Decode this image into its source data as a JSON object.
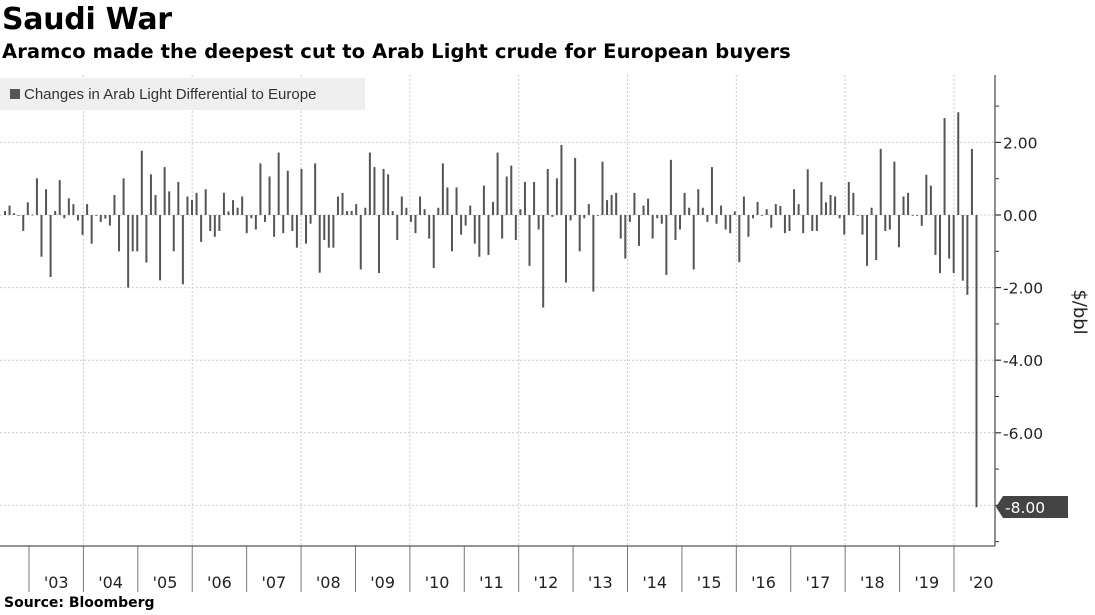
{
  "header": {
    "title": "Saudi War",
    "subtitle": "Aramco made the deepest cut to Arab Light crude for European buyers"
  },
  "footer": {
    "source": "Source: Bloomberg"
  },
  "colors": {
    "bar": "#555555",
    "grid": "#cccccc",
    "callout": "#444444"
  },
  "chart_data": {
    "type": "bar",
    "title": "Saudi War",
    "subtitle": "Aramco made the deepest cut to Arab Light crude for European buyers",
    "legend": {
      "entries": [
        "Changes in Arab Light Differential to Europe"
      ],
      "placement": "top-left"
    },
    "x_start": "2002-08",
    "frequency": "monthly",
    "x_tick_labels": [
      "'03",
      "'04",
      "'05",
      "'06",
      "'07",
      "'08",
      "'09",
      "'10",
      "'11",
      "'12",
      "'13",
      "'14",
      "'15",
      "'16",
      "'17",
      "'18",
      "'19",
      "'20"
    ],
    "x_tick_years": [
      2003,
      2004,
      2005,
      2006,
      2007,
      2008,
      2009,
      2010,
      2011,
      2012,
      2013,
      2014,
      2015,
      2016,
      2017,
      2018,
      2019,
      2020
    ],
    "y_ticks": [
      2,
      0,
      -2,
      -4,
      -6,
      -8
    ],
    "y_tick_labels": [
      "2.00",
      "0.00",
      "-2.00",
      "-4.00",
      "-6.00",
      "-8.00"
    ],
    "ylabel": "$/bbl",
    "xlabel": "",
    "ylim": [
      -9.1,
      3.85
    ],
    "grid": true,
    "axis_side": "right",
    "last_value_label": "-8.00",
    "values": [
      0.11,
      0.26,
      0.05,
      0.0,
      -0.44,
      0.35,
      0.01,
      1.01,
      -1.15,
      0.71,
      -1.71,
      0.11,
      0.96,
      -0.09,
      0.46,
      0.3,
      -0.15,
      -0.55,
      0.3,
      -0.79,
      -0.02,
      -0.19,
      -0.1,
      -0.29,
      0.55,
      -1.0,
      1.01,
      -2.0,
      -1.0,
      -1.0,
      1.77,
      -1.31,
      1.12,
      0.55,
      -1.8,
      1.32,
      0.65,
      -1.0,
      0.91,
      -1.91,
      0.51,
      0.41,
      0.61,
      -0.74,
      0.71,
      -0.44,
      -0.6,
      -0.44,
      0.61,
      0.1,
      0.41,
      0.2,
      0.51,
      -0.5,
      -0.09,
      -0.4,
      1.42,
      -0.19,
      1.06,
      -0.6,
      1.72,
      -0.5,
      1.22,
      -0.44,
      -0.9,
      1.27,
      -0.79,
      -0.24,
      1.42,
      -1.59,
      -0.69,
      -0.9,
      -0.9,
      0.51,
      0.61,
      0.11,
      0.11,
      0.3,
      -1.5,
      0.2,
      1.72,
      1.32,
      -1.6,
      1.27,
      1.12,
      0.11,
      -0.69,
      0.51,
      0.2,
      -0.19,
      -0.5,
      0.51,
      0.16,
      -0.65,
      -1.46,
      0.2,
      1.42,
      0.76,
      -1.0,
      0.76,
      -0.54,
      -0.29,
      0.26,
      -0.79,
      -1.15,
      0.81,
      -1.1,
      0.36,
      1.72,
      -0.65,
      1.06,
      1.36,
      -0.69,
      0.16,
      0.91,
      -1.4,
      0.91,
      -0.4,
      -2.55,
      1.27,
      -0.05,
      1.01,
      1.93,
      -1.86,
      -0.15,
      1.57,
      -1.0,
      -0.09,
      0.3,
      -2.11,
      -0.01,
      1.47,
      0.41,
      0.55,
      0.61,
      -0.65,
      -1.2,
      -0.19,
      0.61,
      -0.85,
      0.26,
      0.45,
      -0.65,
      -0.09,
      -0.24,
      -1.65,
      1.52,
      -0.69,
      -0.4,
      0.61,
      0.2,
      -1.5,
      0.71,
      0.2,
      -0.19,
      1.32,
      -0.24,
      0.26,
      -0.4,
      -0.5,
      0.1,
      -1.3,
      0.51,
      -0.6,
      -0.09,
      0.36,
      -0.01,
      0.16,
      -0.35,
      0.3,
      0.25,
      -0.5,
      -0.44,
      0.71,
      0.3,
      -0.5,
      1.26,
      -0.44,
      -0.44,
      0.91,
      0.35,
      0.55,
      0.51,
      -0.09,
      -0.54,
      0.91,
      0.61,
      -0.01,
      -0.54,
      -1.4,
      0.2,
      -1.24,
      1.82,
      -0.44,
      -0.4,
      1.47,
      -0.89,
      0.51,
      0.61,
      0.0,
      -0.01,
      -0.3,
      1.11,
      0.81,
      -1.1,
      -1.6,
      2.67,
      -1.2,
      -1.6,
      2.83,
      -1.81,
      -2.2,
      1.82,
      -8.05
    ]
  }
}
